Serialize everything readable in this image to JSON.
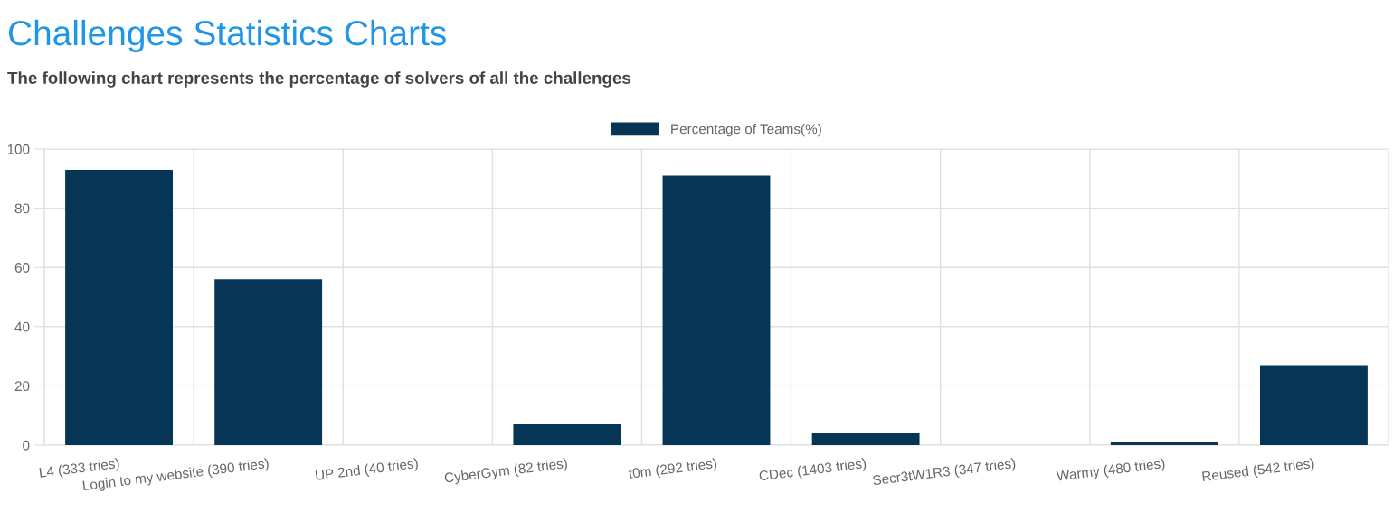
{
  "chart_data": {
    "type": "bar",
    "title": "Challenges Statistics Charts",
    "subtitle": "The following chart represents the percentage of solvers of all the challenges",
    "categories": [
      "L4 (333 tries)",
      "Login to my website (390 tries)",
      "UP 2nd (40 tries)",
      "CyberGym (82 tries)",
      "t0m (292 tries)",
      "CDec (1403 tries)",
      "Secr3tW1R3 (347 tries)",
      "Warmy (480 tries)",
      "Reused (542 tries)"
    ],
    "series": [
      {
        "name": "Percentage of Teams(%)",
        "color": "#063555",
        "values": [
          93,
          56,
          0,
          7,
          91,
          4,
          0,
          1,
          27
        ]
      }
    ],
    "ylim": [
      0,
      100
    ],
    "yticks": [
      0,
      20,
      40,
      60,
      80,
      100
    ],
    "grid": true,
    "legend": "top"
  }
}
